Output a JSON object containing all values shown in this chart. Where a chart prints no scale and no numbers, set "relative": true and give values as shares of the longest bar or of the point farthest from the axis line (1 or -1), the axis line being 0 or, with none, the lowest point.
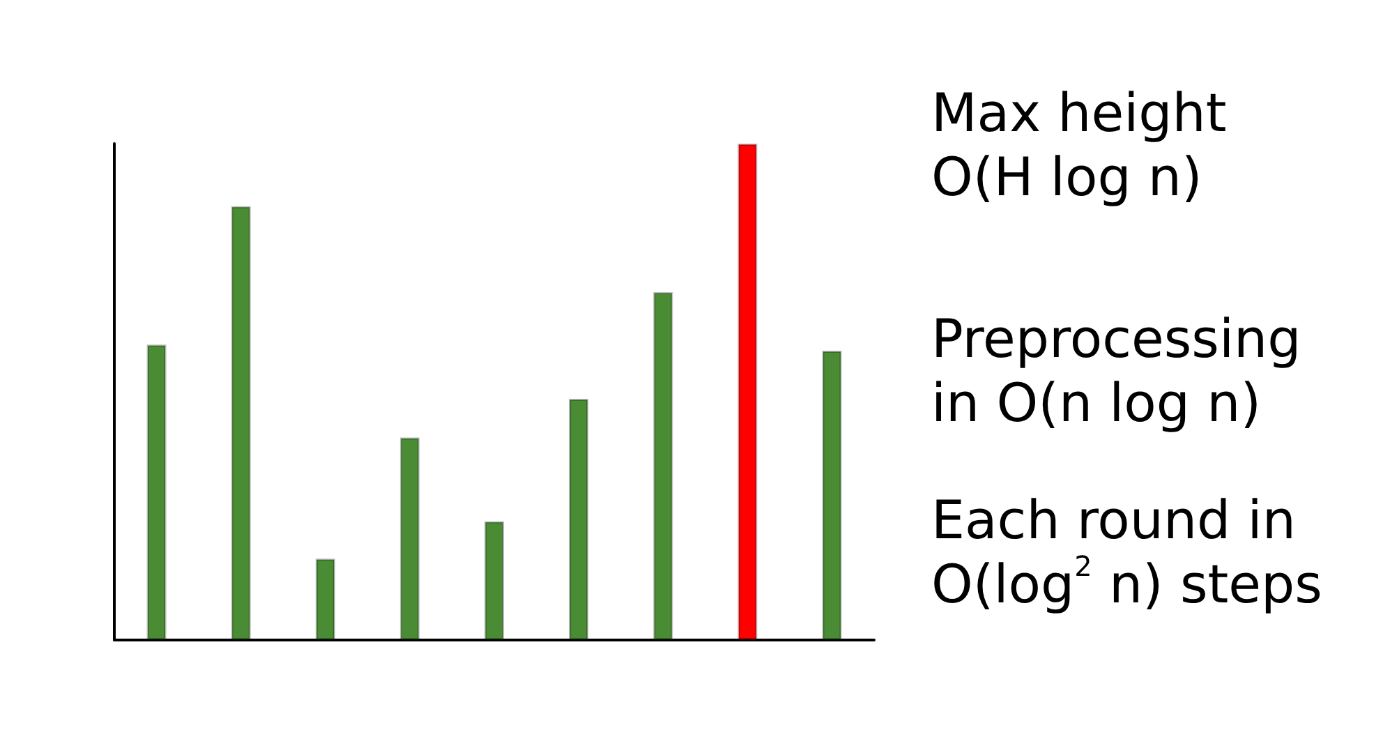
{
  "chart_data": {
    "type": "bar",
    "relative": true,
    "categories": [
      null,
      null,
      null,
      null,
      null,
      null,
      null,
      null,
      null
    ],
    "values": [
      0.595,
      0.874,
      0.164,
      0.408,
      0.239,
      0.486,
      0.701,
      1,
      0.583
    ],
    "colors": [
      "#4a8c34",
      "#4a8c34",
      "#4a8c34",
      "#4a8c34",
      "#4a8c34",
      "#4a8c34",
      "#4a8c34",
      "#ff0000",
      "#4a8c34"
    ],
    "annotations": [
      "Max height\nO(H log n)",
      "Preprocessing\nin O(n log n)",
      "Each round in\nO(log$^{2}$ n) steps"
    ]
  }
}
